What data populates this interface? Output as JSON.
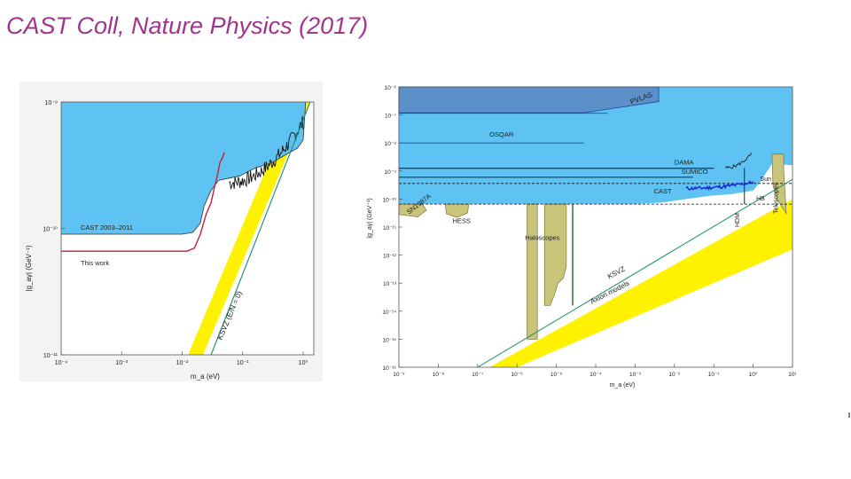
{
  "slide": {
    "title": "CAST Coll, Nature Physics (2017)"
  },
  "colors": {
    "excluded": "#5ec3f2",
    "band": "#fff200",
    "model_line": "#1a8c6e",
    "this_work": "#c0203a",
    "pvlas": "#5a8fc7",
    "sunspot": "#c8c47a",
    "cast_bar": "#1f2bd6"
  },
  "chart_data": [
    {
      "type": "line",
      "id": "left",
      "xlabel": "m_a (eV)",
      "ylabel": "|g_aγ| (GeV⁻¹)",
      "xlog": true,
      "ylog": true,
      "xlim": [
        0.0001,
        1.5
      ],
      "ylim": [
        1e-11,
        1e-09
      ],
      "x_ticks": [
        {
          "v": 0.0001,
          "l": "10⁻⁴"
        },
        {
          "v": 0.001,
          "l": "10⁻³"
        },
        {
          "v": 0.01,
          "l": "10⁻²"
        },
        {
          "v": 0.1,
          "l": "10⁻¹"
        },
        {
          "v": 1,
          "l": "10⁰"
        }
      ],
      "y_ticks": [
        {
          "v": 1e-11,
          "l": "10⁻¹¹"
        },
        {
          "v": 1e-10,
          "l": "10⁻¹⁰"
        },
        {
          "v": 1e-09,
          "l": "10⁻⁹"
        }
      ],
      "series": [
        {
          "name": "CAST 2003–2011",
          "x": [
            0.0001,
            0.01,
            0.015,
            0.02,
            0.023,
            0.03,
            0.04,
            0.06,
            0.09,
            0.12,
            0.16,
            0.3,
            0.5,
            0.8,
            1.0,
            1.1
          ],
          "y": [
            9e-11,
            9e-11,
            9.3e-11,
            1.1e-10,
            1.5e-10,
            2e-10,
            2.4e-10,
            2.5e-10,
            2.6e-10,
            2.8e-10,
            3e-10,
            3.3e-10,
            3.8e-10,
            4.3e-10,
            5e-10,
            1e-09
          ]
        },
        {
          "name": "This work",
          "x": [
            0.0001,
            0.012,
            0.016,
            0.02,
            0.025,
            0.03,
            0.034,
            0.038,
            0.042,
            0.046,
            0.05
          ],
          "y": [
            6.6e-11,
            6.6e-11,
            7e-11,
            9e-11,
            1.3e-10,
            1.6e-10,
            2.1e-10,
            2.6e-10,
            3.3e-10,
            3.6e-10,
            4e-10
          ]
        },
        {
          "name": "KSVZ (E/N = 0)",
          "x": [
            0.03,
            1.3
          ],
          "y": [
            1e-11,
            1e-09
          ]
        }
      ],
      "annotations": [
        "CAST 2003–2011",
        "This work",
        "KSVZ (E/N = 0)"
      ]
    },
    {
      "type": "line",
      "id": "right",
      "xlabel": "m_a (eV)",
      "ylabel": "|g_aγ| (GeV⁻¹)",
      "xlog": true,
      "ylog": true,
      "xlim": [
        1e-09,
        10
      ],
      "ylim": [
        1e-16,
        1e-06
      ],
      "x_ticks": [
        {
          "v": 1e-09,
          "l": "10⁻⁹"
        },
        {
          "v": 1e-08,
          "l": "10⁻⁸"
        },
        {
          "v": 1e-07,
          "l": "10⁻⁷"
        },
        {
          "v": 1e-06,
          "l": "10⁻⁶"
        },
        {
          "v": 1e-05,
          "l": "10⁻⁵"
        },
        {
          "v": 0.0001,
          "l": "10⁻⁴"
        },
        {
          "v": 0.001,
          "l": "10⁻³"
        },
        {
          "v": 0.01,
          "l": "10⁻²"
        },
        {
          "v": 0.1,
          "l": "10⁻¹"
        },
        {
          "v": 1,
          "l": "10⁰"
        },
        {
          "v": 10,
          "l": "10¹"
        }
      ],
      "y_ticks": [
        {
          "v": 1e-06,
          "l": "10⁻⁶"
        },
        {
          "v": 1e-07,
          "l": "10⁻⁷"
        },
        {
          "v": 1e-08,
          "l": "10⁻⁸"
        },
        {
          "v": 1e-09,
          "l": "10⁻⁹"
        },
        {
          "v": 1e-10,
          "l": "10⁻¹⁰"
        },
        {
          "v": 1e-11,
          "l": "10⁻¹¹"
        },
        {
          "v": 1e-12,
          "l": "10⁻¹²"
        },
        {
          "v": 1e-13,
          "l": "10⁻¹³"
        },
        {
          "v": 1e-14,
          "l": "10⁻¹⁴"
        },
        {
          "v": 1e-15,
          "l": "10⁻¹⁵"
        },
        {
          "v": 1e-16,
          "l": "10⁻¹⁶"
        }
      ],
      "regions": [
        {
          "name": "PVLAS",
          "x": [
            1e-09,
            0.001
          ],
          "y": [
            1.2e-07,
            1e-06
          ]
        },
        {
          "name": "OSQAR",
          "x": [
            1e-09,
            0.001
          ],
          "y": [
            1e-08,
            1e-07
          ]
        },
        {
          "name": "CAST",
          "x": [
            1e-09,
            1
          ],
          "y": [
            6.6e-11,
            1e-08
          ]
        },
        {
          "name": "SN1987A",
          "x": [
            1e-09,
            1e-08
          ],
          "y": [
            3e-11,
            6.6e-11
          ]
        },
        {
          "name": "HESS",
          "x": [
            1.5e-08,
            6e-08
          ],
          "y": [
            2.1e-11,
            6.6e-11
          ]
        },
        {
          "name": "Haloscopes",
          "x": [
            2e-06,
            3e-05
          ],
          "y": [
            1e-15,
            6.6e-11
          ]
        },
        {
          "name": "Telescopes",
          "x": [
            3,
            10
          ],
          "y": [
            3e-11,
            4e-09
          ]
        }
      ],
      "series": [
        {
          "name": "DAMA",
          "x": [
            1e-09,
            1
          ],
          "y": [
            1.2e-09,
            1.2e-09
          ]
        },
        {
          "name": "SUMICO",
          "x": [
            1e-09,
            1
          ],
          "y": [
            6e-10,
            6e-10
          ]
        },
        {
          "name": "Sun",
          "x": [
            1e-09,
            10
          ],
          "y": [
            4e-10,
            4e-10
          ]
        },
        {
          "name": "HB",
          "x": [
            1e-09,
            10
          ],
          "y": [
            6.6e-11,
            6.6e-11
          ]
        },
        {
          "name": "KSVZ",
          "x": [
            1e-07,
            10
          ],
          "y": [
            1e-16,
            1e-10
          ]
        },
        {
          "name": "Axion models",
          "x": [
            1e-09,
            10
          ],
          "y": [
            1e-17,
            3e-11
          ]
        }
      ],
      "annotations": [
        "PVLAS",
        "OSQAR",
        "DAMA",
        "SUMICO",
        "Sun",
        "CAST",
        "HB",
        "SN1987A",
        "HESS",
        "Haloscopes",
        "KSVZ",
        "Axion models",
        "HDM",
        "Telescopes"
      ]
    }
  ]
}
